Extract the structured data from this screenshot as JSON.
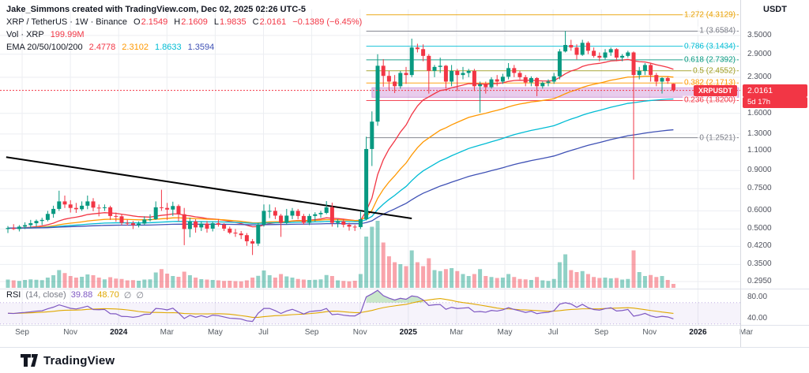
{
  "attribution": "Jake_Simmons created with TradingView.com, Dec 02, 2025 02:26 UTC-5",
  "symbol_row": {
    "title": "XRP / TetherUS · 1W · Binance",
    "o_key": "O",
    "o": "2.1549",
    "h_key": "H",
    "h": "2.1609",
    "l_key": "L",
    "l": "1.9835",
    "c_key": "C",
    "c": "2.0161",
    "change": "−0.1389 (−6.45%)"
  },
  "volume_row": {
    "label": "Vol · XRP",
    "value": "199.99M"
  },
  "ema_row": {
    "label": "EMA 20/50/100/200",
    "v20": "2.4778",
    "v50": "2.3102",
    "v100": "1.8633",
    "v200": "1.3594"
  },
  "rsi_row": {
    "label": "RSI",
    "params": "(14, close)",
    "value": "39.88",
    "ma_value": "48.70",
    "empty1": "∅",
    "empty2": "∅"
  },
  "price_axis": {
    "currency": "USDT",
    "ticks": [
      {
        "label": "3.5000",
        "value": 3.5
      },
      {
        "label": "2.9000",
        "value": 2.9
      },
      {
        "label": "2.3000",
        "value": 2.3
      },
      {
        "label": "1.6000",
        "value": 1.6
      },
      {
        "label": "1.3000",
        "value": 1.3
      },
      {
        "label": "1.1000",
        "value": 1.1
      },
      {
        "label": "0.9000",
        "value": 0.9
      },
      {
        "label": "0.7500",
        "value": 0.75
      },
      {
        "label": "0.6000",
        "value": 0.6
      },
      {
        "label": "0.5000",
        "value": 0.5
      },
      {
        "label": "0.4200",
        "value": 0.42
      },
      {
        "label": "0.3500",
        "value": 0.35
      },
      {
        "label": "0.2950",
        "value": 0.295
      }
    ],
    "rsi_ticks": [
      "80.00",
      "40.00"
    ],
    "badge": {
      "symbol": "XRPUSDT",
      "price": "2.0161",
      "countdown": "5d 17h",
      "color": "#f23645"
    }
  },
  "fib_levels": [
    {
      "label": "1.272 (4.3129)",
      "price": 4.3129,
      "color": "#e8a000"
    },
    {
      "label": "1 (3.6584)",
      "price": 3.6584,
      "color": "#787b86"
    },
    {
      "label": "0.786 (3.1434)",
      "price": 3.1434,
      "color": "#00bcd4"
    },
    {
      "label": "0.618 (2.7392)",
      "price": 2.7392,
      "color": "#089981"
    },
    {
      "label": "0.5 (2.4552)",
      "price": 2.4552,
      "color": "#9e9d24"
    },
    {
      "label": "0.382 (2.1713)",
      "price": 2.1713,
      "color": "#ff9800"
    },
    {
      "label": "0.236 (1.8200)",
      "price": 1.82,
      "color": "#f23645"
    },
    {
      "label": "0 (1.2521)",
      "price": 1.2521,
      "color": "#787b86"
    }
  ],
  "time_axis": {
    "labels": [
      "Sep",
      "Nov",
      "2024",
      "Mar",
      "May",
      "Jul",
      "Sep",
      "Nov",
      "2025",
      "Mar",
      "May",
      "Jul",
      "Sep",
      "Nov",
      "2026",
      "Mar"
    ]
  },
  "footer": {
    "brand": "TradingView"
  },
  "chart_data": {
    "type": "candlestick",
    "symbol": "XRP/USDT",
    "exchange": "Binance",
    "timeframe": "1W",
    "scale": "log",
    "start_label": "Sep 2023",
    "end_label": "Dec 2025",
    "last_price": 2.0161,
    "last_ohlc": {
      "o": 2.1549,
      "h": 2.1609,
      "l": 1.9835,
      "c": 2.0161
    },
    "last_volume_label": "199.99M",
    "up_color": "#089981",
    "down_color": "#f23645",
    "ema_periods": [
      20,
      50,
      100,
      200
    ],
    "ema_colors": [
      "#f23645",
      "#ff9800",
      "#00bcd4",
      "#3f51b5"
    ],
    "ema_last_values": [
      2.4778,
      2.3102,
      1.8633,
      1.3594
    ],
    "rsi_last": 39.88,
    "rsi_ma_last": 48.7,
    "support_zone": {
      "from_week": 64,
      "price_from": 1.88,
      "price_to": 2.07,
      "color": "rgba(171,71,188,0.28)"
    },
    "fib_start_week": 63,
    "trendline": {
      "from": {
        "week": -0.3,
        "price": 1.03
      },
      "to": {
        "week": 71,
        "price": 0.556
      }
    },
    "volume_unit": "M",
    "candles_format": [
      "open",
      "high",
      "low",
      "close",
      "volume_M"
    ],
    "candles": [
      [
        0.5,
        0.515,
        0.48,
        0.505,
        420
      ],
      [
        0.505,
        0.525,
        0.495,
        0.5,
        380
      ],
      [
        0.5,
        0.52,
        0.488,
        0.512,
        350
      ],
      [
        0.512,
        0.535,
        0.5,
        0.52,
        400
      ],
      [
        0.52,
        0.548,
        0.505,
        0.53,
        430
      ],
      [
        0.53,
        0.55,
        0.512,
        0.542,
        410
      ],
      [
        0.542,
        0.56,
        0.52,
        0.548,
        390
      ],
      [
        0.548,
        0.6,
        0.54,
        0.582,
        520
      ],
      [
        0.582,
        0.632,
        0.56,
        0.612,
        640
      ],
      [
        0.612,
        0.735,
        0.6,
        0.66,
        900
      ],
      [
        0.66,
        0.7,
        0.618,
        0.64,
        750
      ],
      [
        0.64,
        0.668,
        0.59,
        0.618,
        600
      ],
      [
        0.618,
        0.65,
        0.588,
        0.61,
        520
      ],
      [
        0.61,
        0.66,
        0.6,
        0.632,
        560
      ],
      [
        0.632,
        0.7,
        0.61,
        0.66,
        680
      ],
      [
        0.66,
        0.682,
        0.598,
        0.62,
        640
      ],
      [
        0.62,
        0.64,
        0.568,
        0.618,
        520
      ],
      [
        0.618,
        0.64,
        0.6,
        0.622,
        430
      ],
      [
        0.622,
        0.632,
        0.548,
        0.57,
        540
      ],
      [
        0.57,
        0.59,
        0.538,
        0.568,
        470
      ],
      [
        0.568,
        0.58,
        0.52,
        0.532,
        450
      ],
      [
        0.532,
        0.55,
        0.518,
        0.53,
        380
      ],
      [
        0.53,
        0.542,
        0.5,
        0.52,
        390
      ],
      [
        0.52,
        0.54,
        0.508,
        0.528,
        360
      ],
      [
        0.528,
        0.568,
        0.52,
        0.55,
        420
      ],
      [
        0.55,
        0.58,
        0.54,
        0.552,
        430
      ],
      [
        0.552,
        0.66,
        0.548,
        0.622,
        780
      ],
      [
        0.622,
        0.742,
        0.6,
        0.618,
        950
      ],
      [
        0.618,
        0.65,
        0.548,
        0.608,
        720
      ],
      [
        0.608,
        0.658,
        0.57,
        0.63,
        600
      ],
      [
        0.63,
        0.64,
        0.54,
        0.58,
        560
      ],
      [
        0.58,
        0.618,
        0.425,
        0.5,
        820
      ],
      [
        0.5,
        0.56,
        0.46,
        0.54,
        640
      ],
      [
        0.54,
        0.552,
        0.482,
        0.508,
        520
      ],
      [
        0.508,
        0.54,
        0.49,
        0.528,
        440
      ],
      [
        0.528,
        0.542,
        0.482,
        0.502,
        420
      ],
      [
        0.502,
        0.54,
        0.488,
        0.53,
        400
      ],
      [
        0.53,
        0.552,
        0.512,
        0.522,
        380
      ],
      [
        0.522,
        0.53,
        0.49,
        0.502,
        350
      ],
      [
        0.502,
        0.512,
        0.475,
        0.482,
        360
      ],
      [
        0.482,
        0.5,
        0.462,
        0.478,
        340
      ],
      [
        0.478,
        0.49,
        0.452,
        0.47,
        330
      ],
      [
        0.47,
        0.48,
        0.422,
        0.442,
        380
      ],
      [
        0.442,
        0.452,
        0.385,
        0.432,
        520
      ],
      [
        0.432,
        0.532,
        0.422,
        0.522,
        610
      ],
      [
        0.522,
        0.64,
        0.512,
        0.6,
        880
      ],
      [
        0.6,
        0.64,
        0.558,
        0.6,
        640
      ],
      [
        0.6,
        0.622,
        0.552,
        0.572,
        520
      ],
      [
        0.572,
        0.582,
        0.462,
        0.532,
        700
      ],
      [
        0.532,
        0.612,
        0.522,
        0.572,
        580
      ],
      [
        0.572,
        0.618,
        0.552,
        0.6,
        520
      ],
      [
        0.6,
        0.612,
        0.552,
        0.57,
        450
      ],
      [
        0.57,
        0.582,
        0.522,
        0.532,
        420
      ],
      [
        0.532,
        0.582,
        0.52,
        0.57,
        400
      ],
      [
        0.57,
        0.592,
        0.54,
        0.58,
        410
      ],
      [
        0.58,
        0.6,
        0.56,
        0.588,
        430
      ],
      [
        0.588,
        0.662,
        0.58,
        0.622,
        650
      ],
      [
        0.622,
        0.652,
        0.512,
        0.532,
        600
      ],
      [
        0.532,
        0.552,
        0.508,
        0.54,
        380
      ],
      [
        0.54,
        0.552,
        0.508,
        0.522,
        350
      ],
      [
        0.522,
        0.532,
        0.492,
        0.512,
        330
      ],
      [
        0.512,
        0.522,
        0.49,
        0.51,
        360
      ],
      [
        0.51,
        0.6,
        0.5,
        0.552,
        700
      ],
      [
        0.552,
        1.265,
        0.545,
        1.118,
        2600
      ],
      [
        1.118,
        1.632,
        0.942,
        1.472,
        3100
      ],
      [
        1.472,
        2.9,
        1.412,
        2.582,
        3400
      ],
      [
        2.582,
        2.76,
        2.09,
        2.332,
        2300
      ],
      [
        2.332,
        2.45,
        2.02,
        2.202,
        1600
      ],
      [
        2.202,
        2.352,
        1.962,
        2.102,
        1300
      ],
      [
        2.102,
        2.452,
        2.052,
        2.402,
        1200
      ],
      [
        2.402,
        2.552,
        2.152,
        2.352,
        1100
      ],
      [
        2.352,
        3.392,
        2.302,
        3.102,
        1900
      ],
      [
        3.102,
        3.222,
        2.952,
        3.052,
        1300
      ],
      [
        3.052,
        3.202,
        2.702,
        2.852,
        1100
      ],
      [
        2.852,
        2.902,
        1.952,
        2.452,
        1500
      ],
      [
        2.452,
        2.602,
        2.302,
        2.552,
        900
      ],
      [
        2.552,
        2.802,
        2.402,
        2.582,
        850
      ],
      [
        2.582,
        2.602,
        2.052,
        2.202,
        950
      ],
      [
        2.202,
        2.602,
        2.102,
        2.452,
        1000
      ],
      [
        2.452,
        2.502,
        2.002,
        2.352,
        850
      ],
      [
        2.352,
        2.552,
        2.252,
        2.402,
        700
      ],
      [
        2.402,
        2.502,
        2.302,
        2.452,
        600
      ],
      [
        2.452,
        2.502,
        2.002,
        2.102,
        700
      ],
      [
        2.102,
        2.202,
        1.612,
        2.142,
        950
      ],
      [
        2.142,
        2.202,
        1.952,
        2.082,
        600
      ],
      [
        2.082,
        2.302,
        2.052,
        2.252,
        550
      ],
      [
        2.252,
        2.352,
        2.102,
        2.202,
        500
      ],
      [
        2.202,
        2.382,
        2.152,
        2.312,
        520
      ],
      [
        2.312,
        2.652,
        2.252,
        2.522,
        700
      ],
      [
        2.522,
        2.602,
        2.302,
        2.402,
        550
      ],
      [
        2.402,
        2.452,
        2.252,
        2.302,
        450
      ],
      [
        2.302,
        2.352,
        2.102,
        2.182,
        430
      ],
      [
        2.182,
        2.322,
        2.102,
        2.282,
        400
      ],
      [
        2.282,
        2.302,
        1.902,
        2.102,
        550
      ],
      [
        2.102,
        2.202,
        2.052,
        2.172,
        380
      ],
      [
        2.172,
        2.252,
        2.102,
        2.202,
        350
      ],
      [
        2.202,
        2.402,
        2.152,
        2.322,
        450
      ],
      [
        2.322,
        3.052,
        2.252,
        2.982,
        1300
      ],
      [
        2.982,
        3.662,
        2.952,
        3.182,
        1700
      ],
      [
        3.182,
        3.352,
        3.002,
        3.102,
        900
      ],
      [
        3.102,
        3.202,
        2.752,
        2.882,
        800
      ],
      [
        2.882,
        3.352,
        2.852,
        3.252,
        850
      ],
      [
        3.252,
        3.302,
        2.902,
        3.002,
        700
      ],
      [
        3.002,
        3.102,
        2.802,
        2.852,
        550
      ],
      [
        2.852,
        2.952,
        2.702,
        2.802,
        500
      ],
      [
        2.802,
        3.052,
        2.752,
        2.952,
        520
      ],
      [
        2.952,
        3.102,
        2.852,
        3.052,
        480
      ],
      [
        3.052,
        3.082,
        2.702,
        2.802,
        500
      ],
      [
        2.802,
        2.902,
        2.702,
        2.852,
        420
      ],
      [
        2.852,
        3.002,
        2.802,
        2.952,
        450
      ],
      [
        2.952,
        2.982,
        0.822,
        2.352,
        1900
      ],
      [
        2.352,
        2.552,
        2.252,
        2.452,
        800
      ],
      [
        2.452,
        2.652,
        2.352,
        2.602,
        600
      ],
      [
        2.602,
        2.652,
        2.202,
        2.352,
        650
      ],
      [
        2.352,
        2.402,
        2.102,
        2.202,
        550
      ],
      [
        2.202,
        2.302,
        1.952,
        2.282,
        600
      ],
      [
        2.282,
        2.322,
        2.152,
        2.212,
        400
      ],
      [
        2.1549,
        2.1609,
        1.9835,
        2.0161,
        200
      ]
    ]
  }
}
